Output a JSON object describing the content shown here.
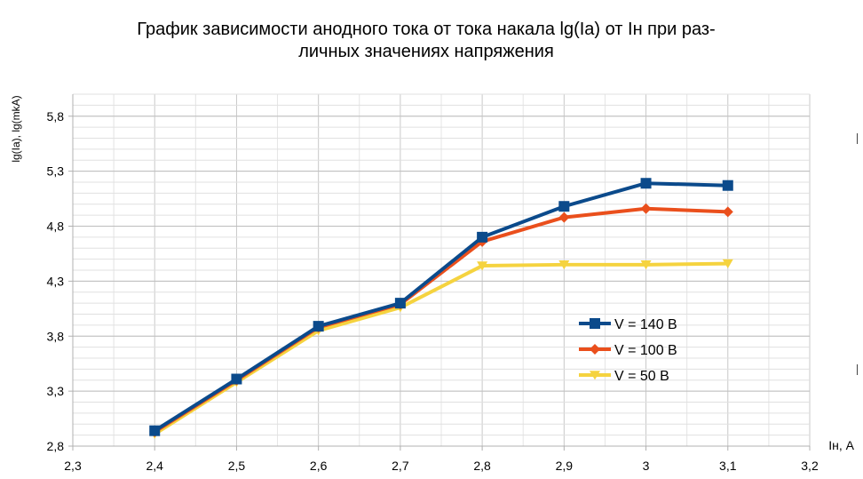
{
  "chart_data": {
    "type": "line",
    "title_lines": [
      "График зависимости анодного тока от тока накала lg(Ia) от Iн при раз-",
      "личных значениях напряжения"
    ],
    "xlabel": "Iн, А",
    "ylabel": "lg(Ia), lg(mkA)",
    "xlim": [
      2.3,
      3.2
    ],
    "ylim": [
      2.8,
      6.0
    ],
    "x_ticks": [
      2.3,
      2.4,
      2.5,
      2.6,
      2.7,
      2.8,
      2.9,
      3.0,
      3.1,
      3.2
    ],
    "x_tick_labels": [
      "2,3",
      "2,4",
      "2,5",
      "2,6",
      "2,7",
      "2,8",
      "2,9",
      "3",
      "3,1",
      "3,2"
    ],
    "y_ticks": [
      2.8,
      3.3,
      3.8,
      4.3,
      4.8,
      5.3,
      5.8
    ],
    "y_tick_labels": [
      "2,8",
      "3,3",
      "3,8",
      "4,3",
      "4,8",
      "5,3",
      "5,8"
    ],
    "grid": true,
    "legend_position": "right-middle",
    "series": [
      {
        "name": "V = 140 В",
        "color": "#0b4a8b",
        "marker": "square",
        "x": [
          2.4,
          2.5,
          2.6,
          2.7,
          2.8,
          2.9,
          3.0,
          3.1
        ],
        "values": [
          2.94,
          3.41,
          3.89,
          4.1,
          4.7,
          4.98,
          5.19,
          5.17
        ]
      },
      {
        "name": "V = 100 В",
        "color": "#ea4f1c",
        "marker": "diamond",
        "x": [
          2.4,
          2.5,
          2.6,
          2.7,
          2.8,
          2.9,
          3.0,
          3.1
        ],
        "values": [
          2.93,
          3.4,
          3.88,
          4.09,
          4.66,
          4.88,
          4.96,
          4.93
        ]
      },
      {
        "name": "V = 50 В",
        "color": "#f5d33f",
        "marker": "triangle-down",
        "x": [
          2.4,
          2.5,
          2.6,
          2.7,
          2.8,
          2.9,
          3.0,
          3.1
        ],
        "values": [
          2.91,
          3.38,
          3.85,
          4.06,
          4.44,
          4.45,
          4.45,
          4.46
        ]
      }
    ]
  }
}
